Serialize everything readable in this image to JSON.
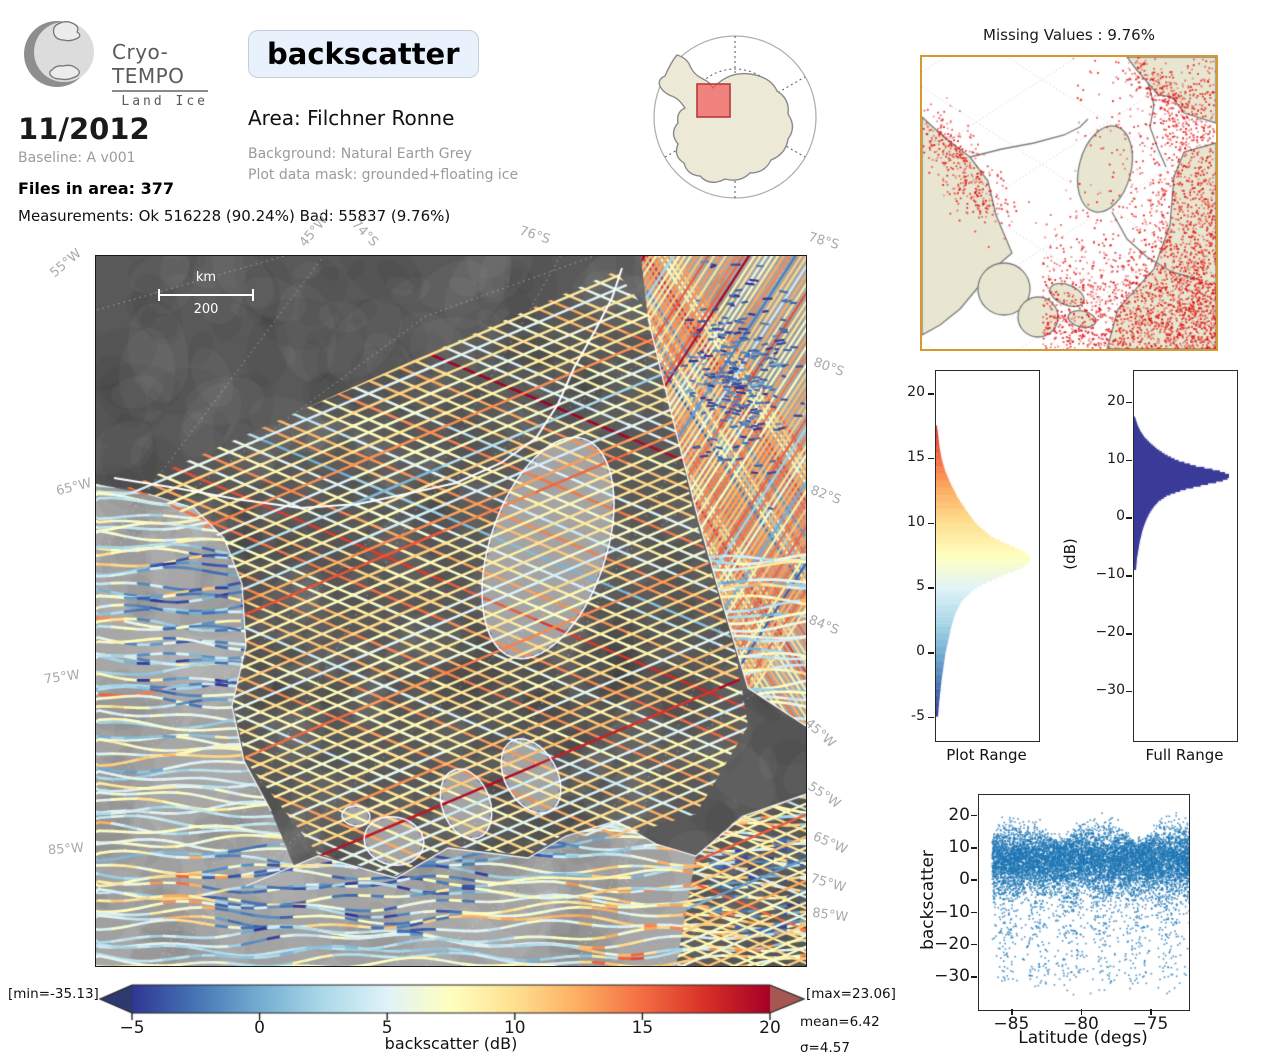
{
  "header": {
    "logo_title": "Cryo-TEMPO",
    "logo_subtitle": "Land Ice",
    "variable_chip": "backscatter",
    "date": "11/2012",
    "baseline": "Baseline: A v001",
    "files": "Files in area: 377",
    "measurements": "Measurements: Ok 516228 (90.24%) Bad: 55837 (9.76%)",
    "area": "Area: Filchner Ronne",
    "background": "Background: Natural Earth Grey",
    "mask": "Plot data mask: grounded+floating ice"
  },
  "main_map": {
    "scalebar_unit": "km",
    "scalebar_value": "200",
    "labels_top": [
      "45°W",
      "74°S",
      "76°S"
    ],
    "labels_left": [
      "55°W",
      "65°W",
      "75°W",
      "85°W"
    ],
    "labels_right": [
      "78°S",
      "80°S",
      "82°S",
      "84°S",
      "45°W",
      "55°W",
      "65°W",
      "75°W",
      "85°W"
    ]
  },
  "missing_map": {
    "title": "Missing Values : 9.76%",
    "hotspots": [
      "eastern margin",
      "south-eastern sector",
      "north-west coast"
    ]
  },
  "colorbar": {
    "label": "backscatter (dB)",
    "ticks": [
      -5,
      0,
      5,
      10,
      15,
      20
    ],
    "min_label": "[min=-35.13]",
    "max_label": "[max=23.06]",
    "mean_label": "mean=6.42",
    "sigma_label": "σ=4.57",
    "colormap": "RdYlBu_r",
    "extend_low_color": "#2e3a6e",
    "extend_high_color": "#a65752"
  },
  "stats": {
    "mean": 6.42,
    "sigma": 4.57,
    "min": -35.13,
    "max": 23.06,
    "ok_count": 516228,
    "ok_pct": 90.24,
    "bad_count": 55837,
    "bad_pct": 9.76,
    "missing_pct": 9.76,
    "files_in_area": 377
  },
  "chart_data": [
    {
      "type": "bar",
      "name": "plot_range_histogram",
      "title": "Plot Range",
      "orientation": "horizontal",
      "axis_units": "dB",
      "ylim": [
        -6.8,
        21.8
      ],
      "yticks": [
        20,
        15,
        10,
        5,
        0,
        -5
      ],
      "data_range": [
        -5,
        17.5
      ],
      "peak_db": 7.2,
      "colormap": "RdYlBu_r",
      "profile_db": [
        -5,
        -4,
        -3,
        -2,
        -1,
        0,
        1,
        2,
        3,
        4,
        5,
        6,
        6.5,
        7,
        7.3,
        7.7,
        8,
        8.5,
        9,
        10,
        11,
        12,
        13,
        14,
        15,
        16,
        17,
        17.5
      ],
      "profile_rel": [
        0.02,
        0.03,
        0.045,
        0.06,
        0.08,
        0.1,
        0.13,
        0.16,
        0.2,
        0.27,
        0.41,
        0.7,
        0.88,
        0.99,
        1.0,
        0.96,
        0.88,
        0.72,
        0.58,
        0.42,
        0.32,
        0.23,
        0.16,
        0.1,
        0.06,
        0.035,
        0.02,
        0.01
      ]
    },
    {
      "type": "bar",
      "name": "full_range_histogram",
      "title": "Full Range",
      "orientation": "horizontal",
      "ylabel": "(dB)",
      "ylim": [
        -38.5,
        25.5
      ],
      "yticks": [
        20,
        10,
        0,
        -10,
        -20,
        -30
      ],
      "data_range": [
        -9,
        17.5
      ],
      "peak_db": 7.4,
      "bar_color": "#3b3b99",
      "profile_db": [
        -9,
        -8,
        -7,
        -6,
        -5,
        -4,
        -3,
        -2,
        -1,
        0,
        1,
        2,
        3,
        4,
        5,
        6,
        6.5,
        7,
        7.5,
        8,
        8.5,
        9,
        10,
        11,
        12,
        13,
        14,
        15,
        16,
        17,
        17.5
      ],
      "profile_rel": [
        0.02,
        0.025,
        0.03,
        0.04,
        0.05,
        0.06,
        0.075,
        0.09,
        0.11,
        0.135,
        0.165,
        0.205,
        0.26,
        0.35,
        0.52,
        0.78,
        0.92,
        1.0,
        1.0,
        0.93,
        0.8,
        0.65,
        0.45,
        0.33,
        0.24,
        0.17,
        0.11,
        0.07,
        0.04,
        0.02,
        0.01
      ]
    },
    {
      "type": "scatter",
      "name": "backscatter_vs_latitude",
      "xlabel": "Latitude (degs)",
      "ylabel": "backscatter",
      "xlim": [
        -87.4,
        -72.3
      ],
      "ylim": [
        -40.2,
        26.5
      ],
      "xticks": [
        -85,
        -80,
        -75
      ],
      "yticks": [
        20,
        10,
        0,
        -10,
        -20,
        -30
      ],
      "x_range": [
        -86.5,
        -72.3
      ],
      "y_bulk": [
        -8,
        20
      ],
      "y_min": -35.13,
      "y_max": 23.06,
      "point_color": "#1f77b4"
    }
  ]
}
